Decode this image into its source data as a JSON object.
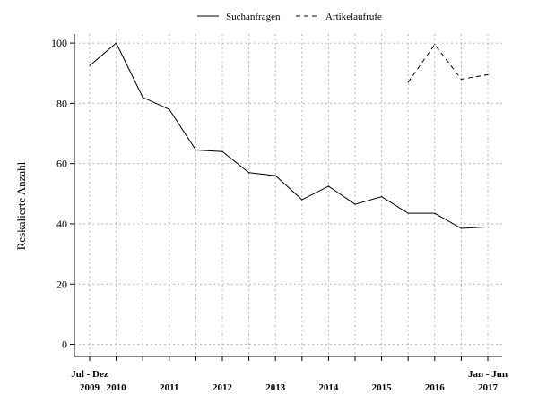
{
  "chart_data": {
    "type": "line",
    "title": "",
    "ylabel": "Reskalierte Anzahl",
    "xlabel": "",
    "ylim": [
      -4,
      103
    ],
    "yticks": [
      0,
      20,
      40,
      60,
      80,
      100
    ],
    "grid": true,
    "legend_position": "top",
    "x_positions": 16,
    "x_tick_labels": [
      {
        "pos": 0,
        "lines": [
          "Jul - Dez",
          "2009"
        ]
      },
      {
        "pos": 1,
        "lines": [
          "",
          "2010"
        ]
      },
      {
        "pos": 3,
        "lines": [
          "",
          "2011"
        ]
      },
      {
        "pos": 5,
        "lines": [
          "",
          "2012"
        ]
      },
      {
        "pos": 7,
        "lines": [
          "",
          "2013"
        ]
      },
      {
        "pos": 9,
        "lines": [
          "",
          "2014"
        ]
      },
      {
        "pos": 11,
        "lines": [
          "",
          "2015"
        ]
      },
      {
        "pos": 13,
        "lines": [
          "",
          "2016"
        ]
      },
      {
        "pos": 15,
        "lines": [
          "Jan - Jun",
          "2017"
        ]
      }
    ],
    "series": [
      {
        "name": "Suchanfragen",
        "style": "solid",
        "values": [
          92.5,
          100,
          82,
          78,
          64.5,
          64,
          57,
          56,
          48,
          52.5,
          46.5,
          49,
          43.5,
          43.5,
          38.5,
          39
        ]
      },
      {
        "name": "Artikelaufrufe",
        "style": "dashed",
        "values": [
          null,
          null,
          null,
          null,
          null,
          null,
          null,
          null,
          null,
          null,
          null,
          null,
          87,
          99.5,
          88,
          89.5
        ]
      }
    ]
  }
}
